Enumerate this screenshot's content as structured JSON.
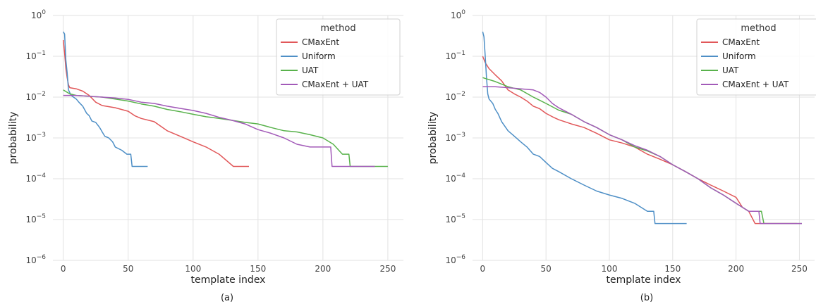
{
  "chart_data": [
    {
      "type": "line",
      "caption": "(a)",
      "xlabel": "template index",
      "ylabel": "probability",
      "yscale": "log",
      "xlim": [
        -8,
        262
      ],
      "ylim": [
        1e-06,
        1
      ],
      "xticks": [
        0,
        50,
        100,
        150,
        200,
        250
      ],
      "yticks": [
        1e-06,
        1e-05,
        0.0001,
        0.001,
        0.01,
        0.1,
        1
      ],
      "ytick_labels": [
        {
          "base": "10",
          "exp": "−6"
        },
        {
          "base": "10",
          "exp": "−5"
        },
        {
          "base": "10",
          "exp": "−4"
        },
        {
          "base": "10",
          "exp": "−3"
        },
        {
          "base": "10",
          "exp": "−2"
        },
        {
          "base": "10",
          "exp": "−1"
        },
        {
          "base": "10",
          "exp": "0"
        }
      ],
      "grid": true,
      "legend": {
        "title": "method",
        "placement": "top-right"
      },
      "series": [
        {
          "name": "CMaxEnt",
          "color": "#e15759",
          "points": [
            [
              0,
              0.25
            ],
            [
              1,
              0.12
            ],
            [
              2,
              0.05
            ],
            [
              3,
              0.03
            ],
            [
              4,
              0.02
            ],
            [
              5,
              0.017
            ],
            [
              10,
              0.016
            ],
            [
              15,
              0.014
            ],
            [
              20,
              0.011
            ],
            [
              25,
              0.0075
            ],
            [
              30,
              0.0062
            ],
            [
              40,
              0.0055
            ],
            [
              50,
              0.0045
            ],
            [
              55,
              0.0035
            ],
            [
              60,
              0.003
            ],
            [
              70,
              0.0025
            ],
            [
              80,
              0.0015
            ],
            [
              90,
              0.0011
            ],
            [
              100,
              0.0008
            ],
            [
              110,
              0.0006
            ],
            [
              120,
              0.0004
            ],
            [
              131,
              0.0002
            ],
            [
              143,
              0.0002
            ]
          ]
        },
        {
          "name": "Uniform",
          "color": "#4e8fc6",
          "points": [
            [
              0,
              0.4
            ],
            [
              1,
              0.35
            ],
            [
              2,
              0.08
            ],
            [
              3,
              0.04
            ],
            [
              4,
              0.015
            ],
            [
              6,
              0.011
            ],
            [
              10,
              0.009
            ],
            [
              12,
              0.0075
            ],
            [
              15,
              0.006
            ],
            [
              18,
              0.004
            ],
            [
              20,
              0.0035
            ],
            [
              22,
              0.0026
            ],
            [
              25,
              0.0024
            ],
            [
              28,
              0.0018
            ],
            [
              30,
              0.0014
            ],
            [
              32,
              0.0011
            ],
            [
              35,
              0.001
            ],
            [
              38,
              0.0008
            ],
            [
              40,
              0.0006
            ],
            [
              45,
              0.0005
            ],
            [
              49,
              0.0004
            ],
            [
              52,
              0.0004
            ],
            [
              53,
              0.0002
            ],
            [
              65,
              0.0002
            ]
          ]
        },
        {
          "name": "UAT",
          "color": "#59b24c",
          "points": [
            [
              0,
              0.015
            ],
            [
              5,
              0.012
            ],
            [
              10,
              0.011
            ],
            [
              20,
              0.0105
            ],
            [
              30,
              0.01
            ],
            [
              40,
              0.009
            ],
            [
              50,
              0.008
            ],
            [
              60,
              0.0068
            ],
            [
              70,
              0.006
            ],
            [
              80,
              0.005
            ],
            [
              90,
              0.0044
            ],
            [
              100,
              0.0038
            ],
            [
              110,
              0.0033
            ],
            [
              120,
              0.003
            ],
            [
              130,
              0.0027
            ],
            [
              140,
              0.0024
            ],
            [
              150,
              0.0022
            ],
            [
              160,
              0.0018
            ],
            [
              170,
              0.0015
            ],
            [
              180,
              0.0014
            ],
            [
              190,
              0.0012
            ],
            [
              200,
              0.001
            ],
            [
              208,
              0.0007
            ],
            [
              215,
              0.0004
            ],
            [
              220,
              0.0004
            ],
            [
              221,
              0.0002
            ],
            [
              250,
              0.0002
            ]
          ]
        },
        {
          "name": "CMaxEnt + UAT",
          "color": "#a25ab8",
          "points": [
            [
              0,
              0.011
            ],
            [
              10,
              0.011
            ],
            [
              20,
              0.0105
            ],
            [
              30,
              0.01
            ],
            [
              40,
              0.0095
            ],
            [
              50,
              0.0088
            ],
            [
              60,
              0.0075
            ],
            [
              70,
              0.007
            ],
            [
              80,
              0.006
            ],
            [
              90,
              0.0053
            ],
            [
              100,
              0.0047
            ],
            [
              110,
              0.004
            ],
            [
              120,
              0.0032
            ],
            [
              130,
              0.0027
            ],
            [
              140,
              0.0022
            ],
            [
              150,
              0.0016
            ],
            [
              160,
              0.0013
            ],
            [
              170,
              0.001
            ],
            [
              180,
              0.0007
            ],
            [
              190,
              0.0006
            ],
            [
              200,
              0.0006
            ],
            [
              206,
              0.0006
            ],
            [
              207,
              0.0002
            ],
            [
              240,
              0.0002
            ]
          ]
        }
      ]
    },
    {
      "type": "line",
      "caption": "(b)",
      "xlabel": "template index",
      "ylabel": "probability",
      "yscale": "log",
      "xlim": [
        -8,
        262
      ],
      "ylim": [
        1e-06,
        1
      ],
      "xticks": [
        0,
        50,
        100,
        150,
        200,
        250
      ],
      "yticks": [
        1e-06,
        1e-05,
        0.0001,
        0.001,
        0.01,
        0.1,
        1
      ],
      "ytick_labels": [
        {
          "base": "10",
          "exp": "−6"
        },
        {
          "base": "10",
          "exp": "−5"
        },
        {
          "base": "10",
          "exp": "−4"
        },
        {
          "base": "10",
          "exp": "−3"
        },
        {
          "base": "10",
          "exp": "−2"
        },
        {
          "base": "10",
          "exp": "−1"
        },
        {
          "base": "10",
          "exp": "0"
        }
      ],
      "grid": true,
      "legend": {
        "title": "method",
        "placement": "top-right"
      },
      "series": [
        {
          "name": "CMaxEnt",
          "color": "#e15759",
          "points": [
            [
              0,
              0.1
            ],
            [
              2,
              0.07
            ],
            [
              5,
              0.05
            ],
            [
              10,
              0.035
            ],
            [
              15,
              0.025
            ],
            [
              20,
              0.015
            ],
            [
              25,
              0.012
            ],
            [
              30,
              0.01
            ],
            [
              35,
              0.008
            ],
            [
              40,
              0.006
            ],
            [
              45,
              0.0052
            ],
            [
              50,
              0.004
            ],
            [
              55,
              0.0033
            ],
            [
              60,
              0.0028
            ],
            [
              70,
              0.0022
            ],
            [
              80,
              0.0018
            ],
            [
              90,
              0.0013
            ],
            [
              100,
              0.0009
            ],
            [
              110,
              0.00075
            ],
            [
              120,
              0.0006
            ],
            [
              130,
              0.0004
            ],
            [
              140,
              0.0003
            ],
            [
              150,
              0.00022
            ],
            [
              160,
              0.00015
            ],
            [
              170,
              0.0001
            ],
            [
              180,
              7e-05
            ],
            [
              190,
              5e-05
            ],
            [
              200,
              3.5e-05
            ],
            [
              205,
              2e-05
            ],
            [
              210,
              1.6e-05
            ],
            [
              215,
              8e-06
            ],
            [
              248,
              8e-06
            ]
          ]
        },
        {
          "name": "Uniform",
          "color": "#4e8fc6",
          "points": [
            [
              0,
              0.4
            ],
            [
              1,
              0.3
            ],
            [
              2,
              0.1
            ],
            [
              3,
              0.03
            ],
            [
              4,
              0.012
            ],
            [
              5,
              0.009
            ],
            [
              8,
              0.007
            ],
            [
              10,
              0.005
            ],
            [
              12,
              0.004
            ],
            [
              15,
              0.0025
            ],
            [
              20,
              0.0015
            ],
            [
              25,
              0.0011
            ],
            [
              30,
              0.0008
            ],
            [
              35,
              0.0006
            ],
            [
              40,
              0.0004
            ],
            [
              45,
              0.00035
            ],
            [
              50,
              0.00025
            ],
            [
              55,
              0.00018
            ],
            [
              60,
              0.00015
            ],
            [
              70,
              0.0001
            ],
            [
              80,
              7e-05
            ],
            [
              90,
              5e-05
            ],
            [
              100,
              4e-05
            ],
            [
              110,
              3.3e-05
            ],
            [
              120,
              2.5e-05
            ],
            [
              130,
              1.6e-05
            ],
            [
              135,
              1.6e-05
            ],
            [
              136,
              8e-06
            ],
            [
              161,
              8e-06
            ]
          ]
        },
        {
          "name": "UAT",
          "color": "#59b24c",
          "points": [
            [
              0,
              0.03
            ],
            [
              10,
              0.024
            ],
            [
              20,
              0.018
            ],
            [
              30,
              0.015
            ],
            [
              40,
              0.01
            ],
            [
              50,
              0.007
            ],
            [
              60,
              0.0048
            ],
            [
              70,
              0.0038
            ],
            [
              80,
              0.0025
            ],
            [
              90,
              0.0018
            ],
            [
              100,
              0.0012
            ],
            [
              110,
              0.0009
            ],
            [
              120,
              0.0006
            ],
            [
              130,
              0.00048
            ],
            [
              140,
              0.00035
            ],
            [
              150,
              0.00022
            ],
            [
              160,
              0.00015
            ],
            [
              170,
              0.0001
            ],
            [
              180,
              6e-05
            ],
            [
              190,
              4e-05
            ],
            [
              200,
              2.5e-05
            ],
            [
              210,
              1.6e-05
            ],
            [
              220,
              1.6e-05
            ],
            [
              222,
              8e-06
            ],
            [
              252,
              8e-06
            ]
          ]
        },
        {
          "name": "CMaxEnt + UAT",
          "color": "#a25ab8",
          "points": [
            [
              0,
              0.018
            ],
            [
              10,
              0.018
            ],
            [
              20,
              0.017
            ],
            [
              30,
              0.016
            ],
            [
              40,
              0.015
            ],
            [
              45,
              0.013
            ],
            [
              50,
              0.01
            ],
            [
              55,
              0.007
            ],
            [
              60,
              0.0055
            ],
            [
              70,
              0.0038
            ],
            [
              80,
              0.0025
            ],
            [
              90,
              0.0018
            ],
            [
              100,
              0.0012
            ],
            [
              110,
              0.0009
            ],
            [
              120,
              0.00065
            ],
            [
              130,
              0.0005
            ],
            [
              140,
              0.00035
            ],
            [
              150,
              0.00022
            ],
            [
              160,
              0.00015
            ],
            [
              170,
              0.0001
            ],
            [
              180,
              6e-05
            ],
            [
              190,
              4e-05
            ],
            [
              200,
              2.5e-05
            ],
            [
              210,
              1.6e-05
            ],
            [
              218,
              1.6e-05
            ],
            [
              219,
              8e-06
            ],
            [
              252,
              8e-06
            ]
          ]
        }
      ]
    }
  ]
}
